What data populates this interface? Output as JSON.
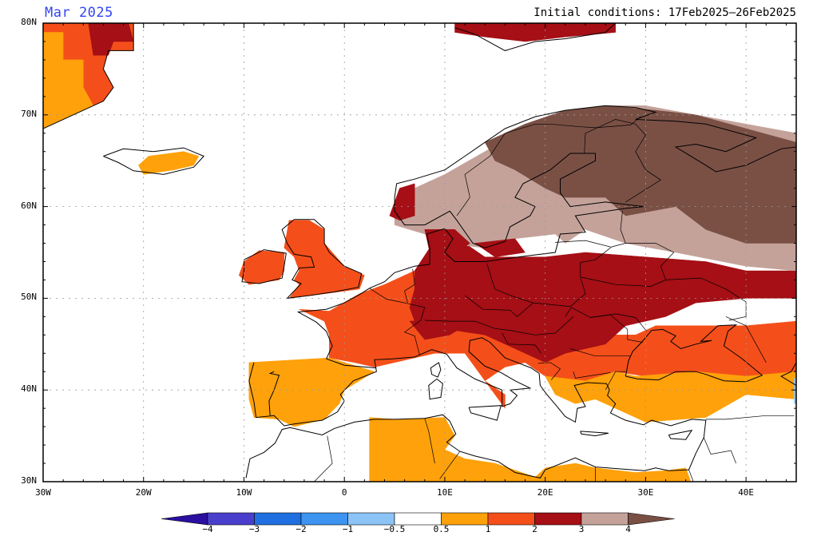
{
  "title": {
    "left": "Mar 2025",
    "right": "Initial conditions: 17Feb2025–26Feb2025"
  },
  "map": {
    "lon_range": [
      -30,
      45
    ],
    "lat_range": [
      30,
      80
    ],
    "lat_labels": [
      {
        "lat": 80,
        "text": "80N"
      },
      {
        "lat": 70,
        "text": "70N"
      },
      {
        "lat": 60,
        "text": "60N"
      },
      {
        "lat": 50,
        "text": "50N"
      },
      {
        "lat": 40,
        "text": "40N"
      },
      {
        "lat": 30,
        "text": "30N"
      }
    ],
    "lon_labels": [
      {
        "lon": -30,
        "text": "30W"
      },
      {
        "lon": -20,
        "text": "20W"
      },
      {
        "lon": -10,
        "text": "10W"
      },
      {
        "lon": 0,
        "text": "0"
      },
      {
        "lon": 10,
        "text": "10E"
      },
      {
        "lon": 20,
        "text": "20E"
      },
      {
        "lon": 30,
        "text": "30E"
      },
      {
        "lon": 40,
        "text": "40E"
      }
    ]
  },
  "legend": {
    "colors": [
      "#2b0fa0",
      "#4a3fcc",
      "#1f6fe0",
      "#3c93f0",
      "#8cc4f8",
      "#ffffff",
      "#ffa10a",
      "#f44f1a",
      "#a50f15",
      "#c4a29a",
      "#7a5045"
    ],
    "labels": [
      "−4",
      "−3",
      "−2",
      "−1",
      "−0.5",
      "0.5",
      "1",
      "2",
      "3",
      "4"
    ]
  },
  "anomaly_colors": {
    "c05": "#ffa10a",
    "c1": "#f44f1a",
    "c2": "#a50f15",
    "c3": "#c4a29a",
    "c4": "#7a5045"
  }
}
